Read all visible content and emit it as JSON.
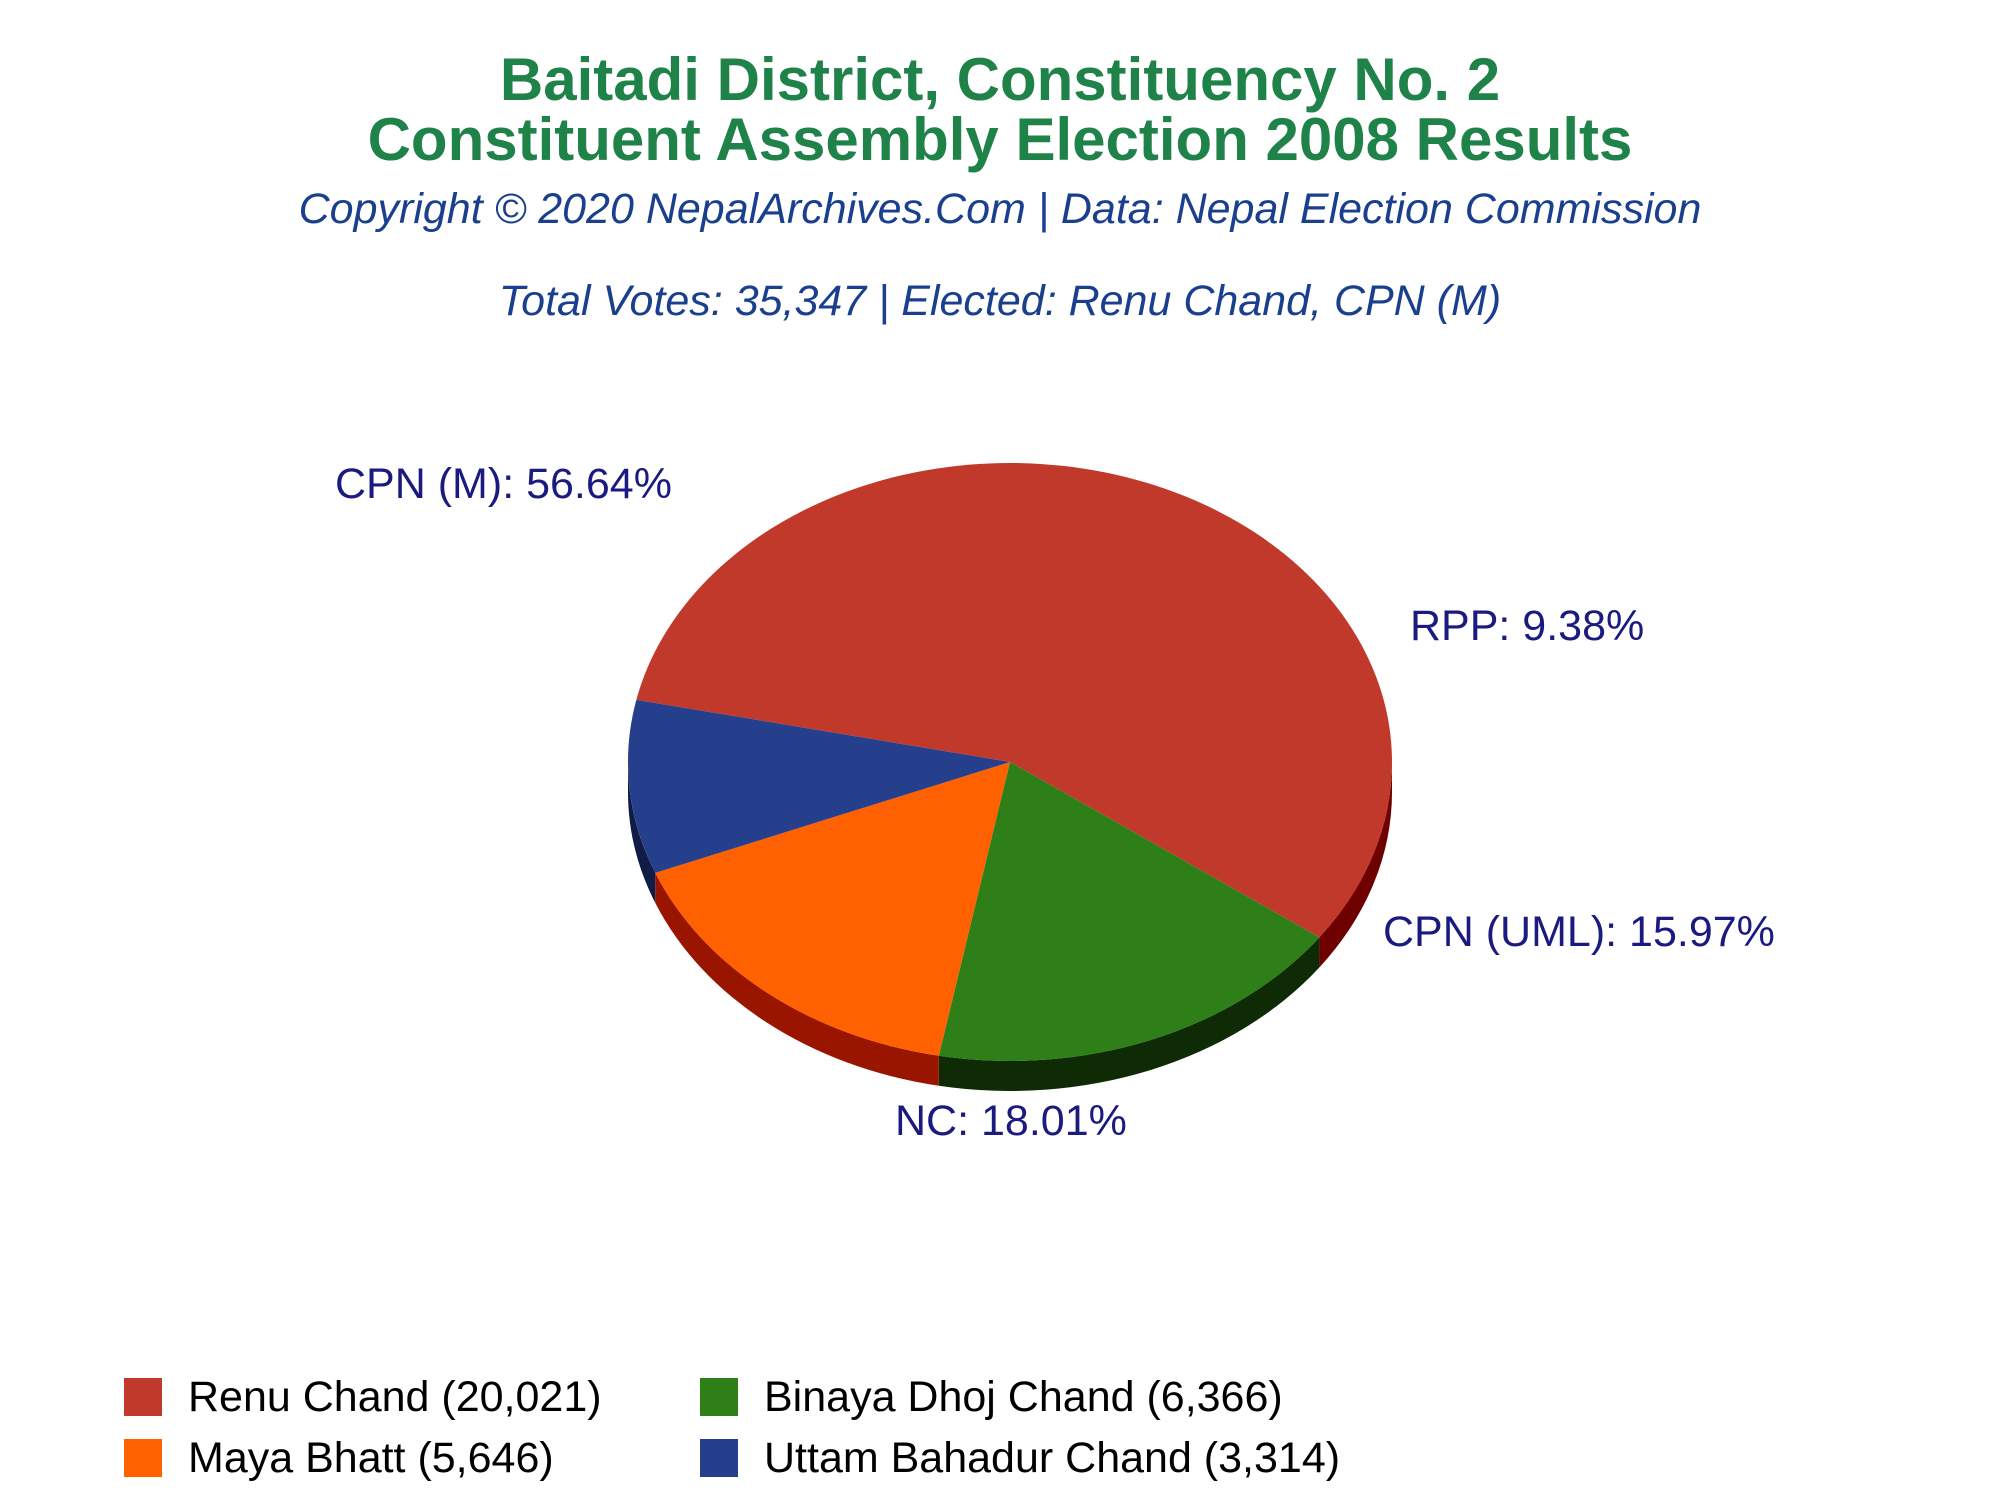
{
  "title_line1": "Baitadi District, Constituency No. 2",
  "title_line2": "Constituent Assembly Election 2008 Results",
  "copyright": "Copyright © 2020 NepalArchives.Com | Data: Nepal Election Commission",
  "summary": "Total Votes: 35,347 | Elected: Renu Chand, CPN (M)",
  "colors": {
    "title": "#1f8249",
    "subtitle": "#1a3f8f",
    "slice_label": "#1a1a80"
  },
  "chart_data": {
    "type": "pie",
    "style": "3d",
    "slices": [
      {
        "party": "CPN (M)",
        "candidate": "Renu Chand",
        "votes": 20021,
        "percent": 56.64,
        "label": "CPN (M): 56.64%",
        "legend": "Renu Chand (20,021)",
        "color": "#c0392b",
        "side_color": "#6e0000"
      },
      {
        "party": "NC",
        "candidate": "Binaya Dhoj Chand",
        "votes": 6366,
        "percent": 18.01,
        "label": "NC: 18.01%",
        "legend": "Binaya Dhoj Chand (6,366)",
        "color": "#2f7f18",
        "side_color": "#0f2b05"
      },
      {
        "party": "CPN (UML)",
        "candidate": "Maya Bhatt",
        "votes": 5646,
        "percent": 15.97,
        "label": "CPN (UML): 15.97%",
        "legend": "Maya Bhatt (5,646)",
        "color": "#ff6000",
        "side_color": "#9a1500"
      },
      {
        "party": "RPP",
        "candidate": "Uttam Bahadur Chand",
        "votes": 3314,
        "percent": 9.38,
        "label": "RPP: 9.38%",
        "legend": "Uttam Bahadur Chand (3,314)",
        "color": "#263f8c",
        "side_color": "#101c45"
      }
    ]
  }
}
